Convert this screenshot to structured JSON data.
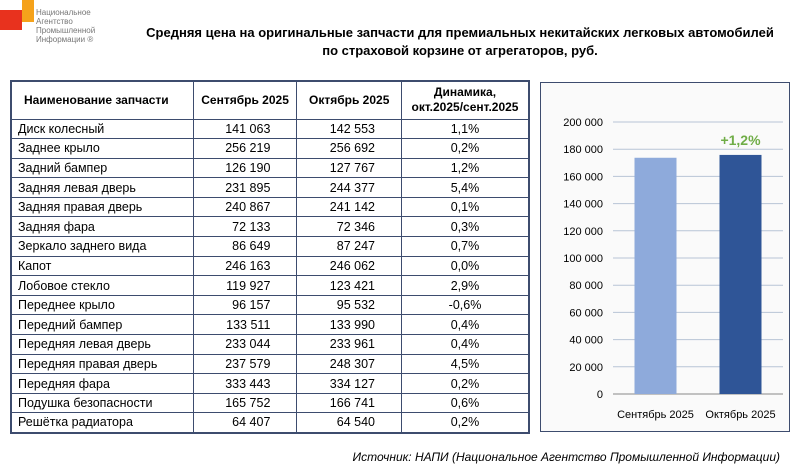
{
  "logo": {
    "abbr": "НАПИ",
    "lines": [
      "Национальное",
      "Агентство",
      "Промышленной",
      "Информации ®"
    ]
  },
  "title": [
    "Средняя цена на оригинальные запчасти для премиальных некитайских легковых автомобилей",
    "по страховой корзине от агрегаторов, руб."
  ],
  "table": {
    "headers": [
      "Наименование запчасти",
      "Сентябрь 2025",
      "Октябрь 2025",
      "Динамика, окт.2025/сент.2025"
    ],
    "rows": [
      [
        "Диск колесный",
        "141 063",
        "142 553",
        "1,1%"
      ],
      [
        "Заднее крыло",
        "256 219",
        "256 692",
        "0,2%"
      ],
      [
        "Задний бампер",
        "126 190",
        "127 767",
        "1,2%"
      ],
      [
        "Задняя левая дверь",
        "231 895",
        "244 377",
        "5,4%"
      ],
      [
        "Задняя правая дверь",
        "240 867",
        "241 142",
        "0,1%"
      ],
      [
        "Задняя фара",
        "72 133",
        "72 346",
        "0,3%"
      ],
      [
        "Зеркало заднего вида",
        "86 649",
        "87 247",
        "0,7%"
      ],
      [
        "Капот",
        "246 163",
        "246 062",
        "0,0%"
      ],
      [
        "Лобовое стекло",
        "119 927",
        "123 421",
        "2,9%"
      ],
      [
        "Переднее крыло",
        "96 157",
        "95 532",
        "-0,6%"
      ],
      [
        "Передний бампер",
        "133 511",
        "133 990",
        "0,4%"
      ],
      [
        "Передняя левая дверь",
        "233 044",
        "233 961",
        "0,4%"
      ],
      [
        "Передняя правая дверь",
        "237 579",
        "248 307",
        "4,5%"
      ],
      [
        "Передняя фара",
        "333 443",
        "334 127",
        "0,2%"
      ],
      [
        "Подушка безопасности",
        "165 752",
        "166 741",
        "0,6%"
      ],
      [
        "Решётка радиатора",
        "64 407",
        "64 540",
        "0,2%"
      ]
    ]
  },
  "chart_data": {
    "type": "bar",
    "categories": [
      "Сентябрь 2025",
      "Октябрь 2025"
    ],
    "values": [
      173700,
      175800
    ],
    "colors": [
      "#8eaadb",
      "#2f5597"
    ],
    "annotation": "+1,2%",
    "annotation_color": "#70ad47",
    "ylim": [
      0,
      200000
    ],
    "yticks": [
      "0",
      "20 000",
      "40 000",
      "60 000",
      "80 000",
      "100 000",
      "120 000",
      "140 000",
      "160 000",
      "180 000",
      "200 000"
    ],
    "grid": true
  },
  "source": "Источник: НАПИ (Национальное Агентство Промышленной Информации)"
}
